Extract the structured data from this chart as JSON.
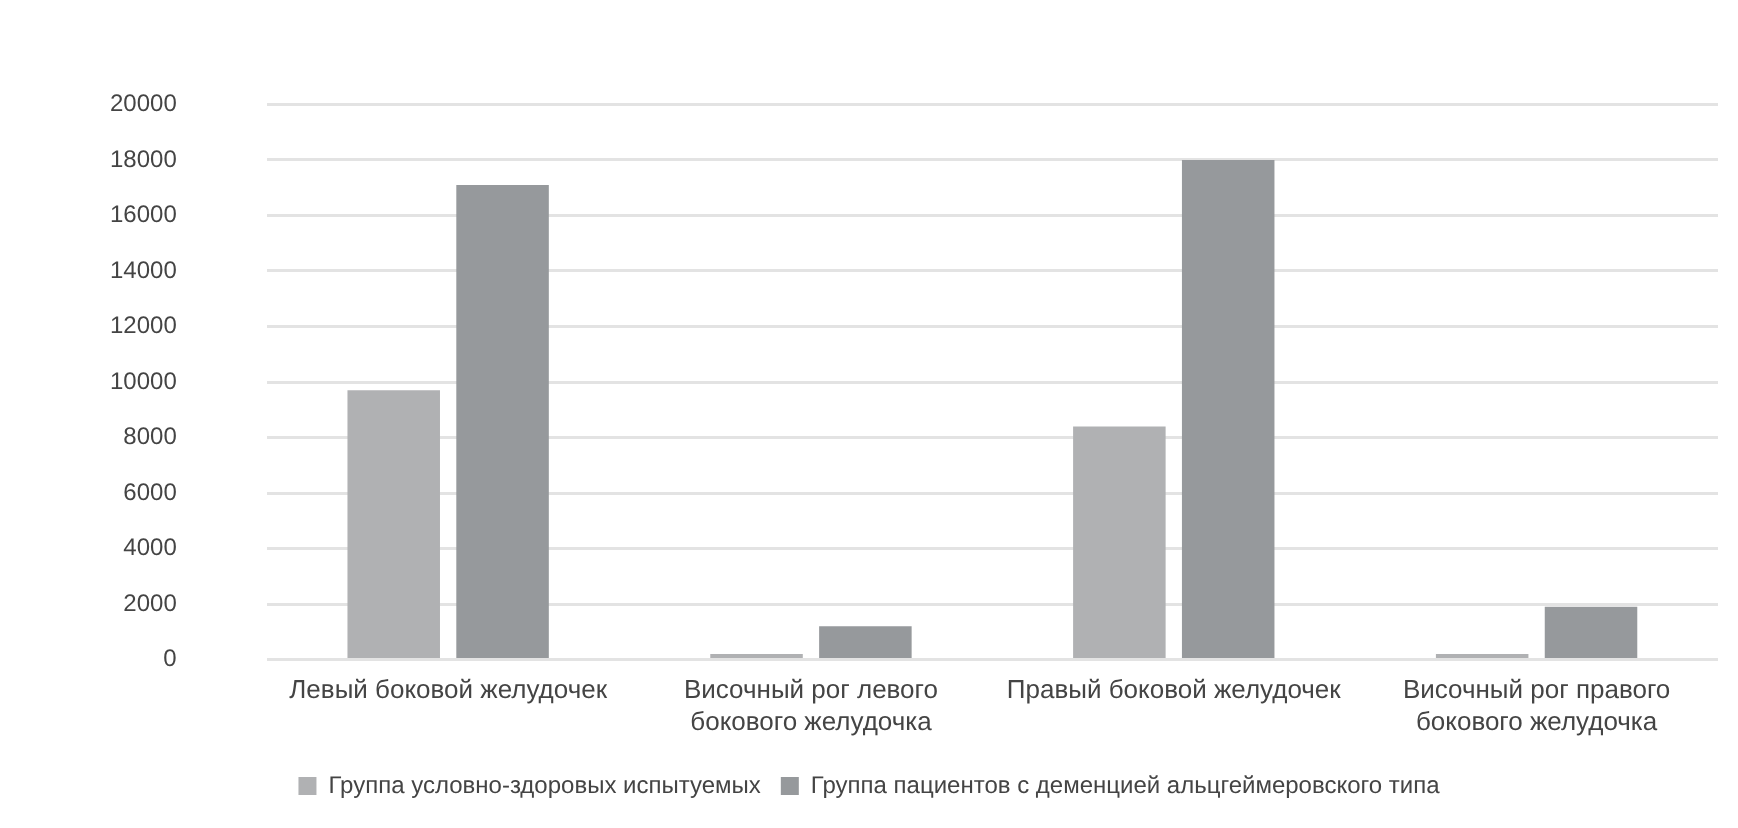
{
  "chart_data": {
    "type": "bar",
    "categories": [
      "Левый боковой желудочек",
      "Височный рог левого бокового желудочка",
      "Правый боковой желудочек",
      "Височный рог правого бокового желудочка"
    ],
    "series": [
      {
        "name": "Группа условно-здоровых испытуемых",
        "color": "#b0b1b3",
        "values": [
          9700,
          200,
          8400,
          200
        ]
      },
      {
        "name": "Группа пациентов с деменцией альцгеймеровского типа",
        "color": "#96999c",
        "values": [
          17100,
          1200,
          18000,
          1900
        ]
      }
    ],
    "ylim": [
      0,
      20000
    ],
    "yticks": [
      0,
      2000,
      4000,
      6000,
      8000,
      10000,
      12000,
      14000,
      16000,
      18000,
      20000
    ],
    "grid": "y",
    "legend": "bottom"
  }
}
